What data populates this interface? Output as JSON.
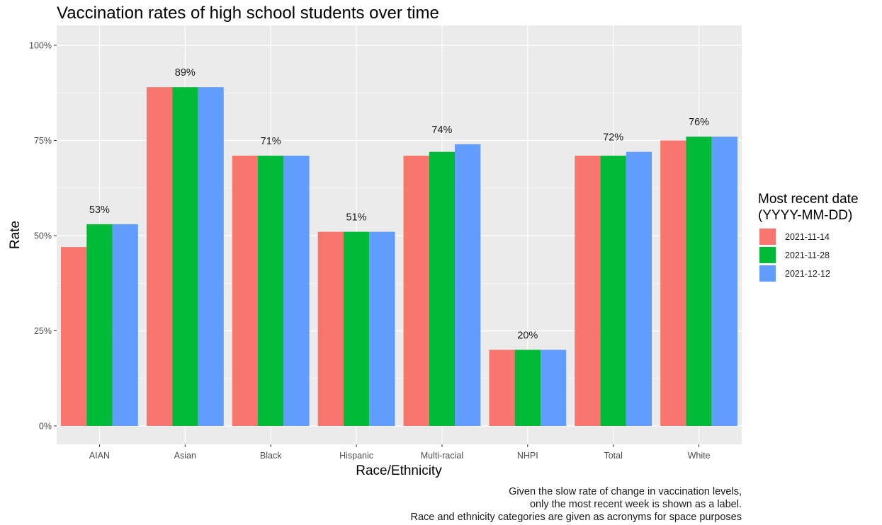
{
  "chart_data": {
    "type": "bar",
    "title": "Vaccination rates of high school students over time",
    "xlabel": "Race/Ethnicity",
    "ylabel": "Rate",
    "ylim": [
      0,
      1
    ],
    "yticks": [
      "0%",
      "25%",
      "50%",
      "75%",
      "100%"
    ],
    "categories": [
      "AIAN",
      "Asian",
      "Black",
      "Hispanic",
      "Multi-racial",
      "NHPI",
      "Total",
      "White"
    ],
    "series": [
      {
        "name": "2021-11-14",
        "color": "#F8766D",
        "values": [
          0.47,
          0.89,
          0.71,
          0.51,
          0.71,
          0.2,
          0.71,
          0.75
        ]
      },
      {
        "name": "2021-11-28",
        "color": "#00BA38",
        "values": [
          0.53,
          0.89,
          0.71,
          0.51,
          0.72,
          0.2,
          0.71,
          0.76
        ]
      },
      {
        "name": "2021-12-12",
        "color": "#619CFF",
        "values": [
          0.53,
          0.89,
          0.71,
          0.51,
          0.74,
          0.2,
          0.72,
          0.76
        ]
      }
    ],
    "data_labels": [
      "53%",
      "89%",
      "71%",
      "51%",
      "74%",
      "20%",
      "72%",
      "76%"
    ],
    "legend": {
      "title_line1": "Most recent date",
      "title_line2": "(YYYY-MM-DD)",
      "position": "right"
    },
    "caption": [
      "Given the slow rate of change in vaccination levels,",
      "only the most recent week is shown as a label.",
      "Race and ethnicity categories are given as acronyms for space purposes"
    ],
    "grid": true
  }
}
